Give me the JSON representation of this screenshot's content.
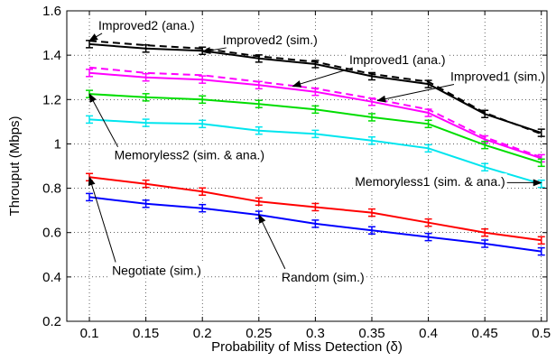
{
  "chart_data": {
    "type": "line",
    "xlabel": "Probability of Miss Detection (δ)",
    "ylabel": "Throuput (Mbps)",
    "x": [
      0.1,
      0.15,
      0.2,
      0.25,
      0.3,
      0.35,
      0.4,
      0.45,
      0.5
    ],
    "x_tick_labels": [
      "0.1",
      "0.15",
      "0.2",
      "0.25",
      "0.3",
      "0.35",
      "0.4",
      "0.45",
      "0.5"
    ],
    "xlim": [
      0.08,
      0.505
    ],
    "ylim": [
      0.2,
      1.6
    ],
    "y_ticks": [
      0.2,
      0.4,
      0.6,
      0.8,
      1,
      1.2,
      1.4,
      1.6
    ],
    "y_tick_labels": [
      "0.2",
      "0.4",
      "0.6",
      "0.8",
      "1",
      "1.2",
      "1.4",
      "1.6"
    ],
    "grid": true,
    "legend": "none",
    "series": [
      {
        "id": "improved2-sim",
        "color": "#000000",
        "style": "solid",
        "error_bars": true,
        "values": [
          1.45,
          1.43,
          1.42,
          1.385,
          1.36,
          1.305,
          1.27,
          1.135,
          1.05
        ]
      },
      {
        "id": "improved2-ana",
        "color": "#000000",
        "style": "dashed",
        "error_bars": false,
        "values": [
          1.465,
          1.445,
          1.43,
          1.395,
          1.37,
          1.315,
          1.28,
          1.14,
          1.045
        ]
      },
      {
        "id": "improved1-sim",
        "color": "#ff00ff",
        "style": "solid",
        "error_bars": true,
        "values": [
          1.32,
          1.3,
          1.29,
          1.265,
          1.235,
          1.19,
          1.14,
          1.02,
          0.935
        ]
      },
      {
        "id": "improved1-ana",
        "color": "#ff00ff",
        "style": "dashed",
        "error_bars": false,
        "values": [
          1.345,
          1.32,
          1.31,
          1.28,
          1.25,
          1.205,
          1.155,
          1.03,
          0.94
        ]
      },
      {
        "id": "memoryless2",
        "color": "#00dd00",
        "style": "solid",
        "error_bars": true,
        "values": [
          1.225,
          1.21,
          1.2,
          1.18,
          1.155,
          1.12,
          1.09,
          0.995,
          0.915
        ]
      },
      {
        "id": "memoryless1",
        "color": "#00e5ee",
        "style": "solid",
        "error_bars": true,
        "values": [
          1.11,
          1.095,
          1.09,
          1.06,
          1.045,
          1.015,
          0.98,
          0.895,
          0.82
        ]
      },
      {
        "id": "negotiate",
        "color": "#ff0000",
        "style": "solid",
        "error_bars": true,
        "values": [
          0.85,
          0.82,
          0.785,
          0.74,
          0.715,
          0.69,
          0.645,
          0.6,
          0.565
        ]
      },
      {
        "id": "random",
        "color": "#0000ff",
        "style": "solid",
        "error_bars": true,
        "values": [
          0.76,
          0.73,
          0.71,
          0.68,
          0.64,
          0.61,
          0.58,
          0.55,
          0.515
        ]
      }
    ],
    "annotations": [
      {
        "text": "Improved2 (ana.)",
        "point": [
          0.1,
          1.465
        ],
        "text_x": 0.108,
        "text_y": 1.535,
        "arrow": true
      },
      {
        "text": "Improved2 (sim.)",
        "point": [
          0.2,
          1.415
        ],
        "text_x": 0.218,
        "text_y": 1.47,
        "arrow": true
      },
      {
        "text": "Improved1 (ana.)",
        "point": [
          0.28,
          1.26
        ],
        "text_x": 0.33,
        "text_y": 1.38,
        "arrow": true
      },
      {
        "text": "Improved1 (sim.)",
        "point": [
          0.355,
          1.195
        ],
        "text_x": 0.42,
        "text_y": 1.305,
        "arrow": true
      },
      {
        "text": "Memoryless2 (sim. & ana.)",
        "point": [
          0.1,
          1.225
        ],
        "text_x": 0.122,
        "text_y": 0.95,
        "arrow": true
      },
      {
        "text": "Memoryless1 (sim. & ana.)",
        "point": [
          0.5,
          0.825
        ],
        "text_x": 0.335,
        "text_y": 0.83,
        "arrow": true
      },
      {
        "text": "Negotiate (sim.)",
        "point": [
          0.1,
          0.85
        ],
        "text_x": 0.12,
        "text_y": 0.43,
        "arrow": true
      },
      {
        "text": "Random (sim.)",
        "point": [
          0.25,
          0.68
        ],
        "text_x": 0.27,
        "text_y": 0.4,
        "arrow": true
      }
    ]
  }
}
